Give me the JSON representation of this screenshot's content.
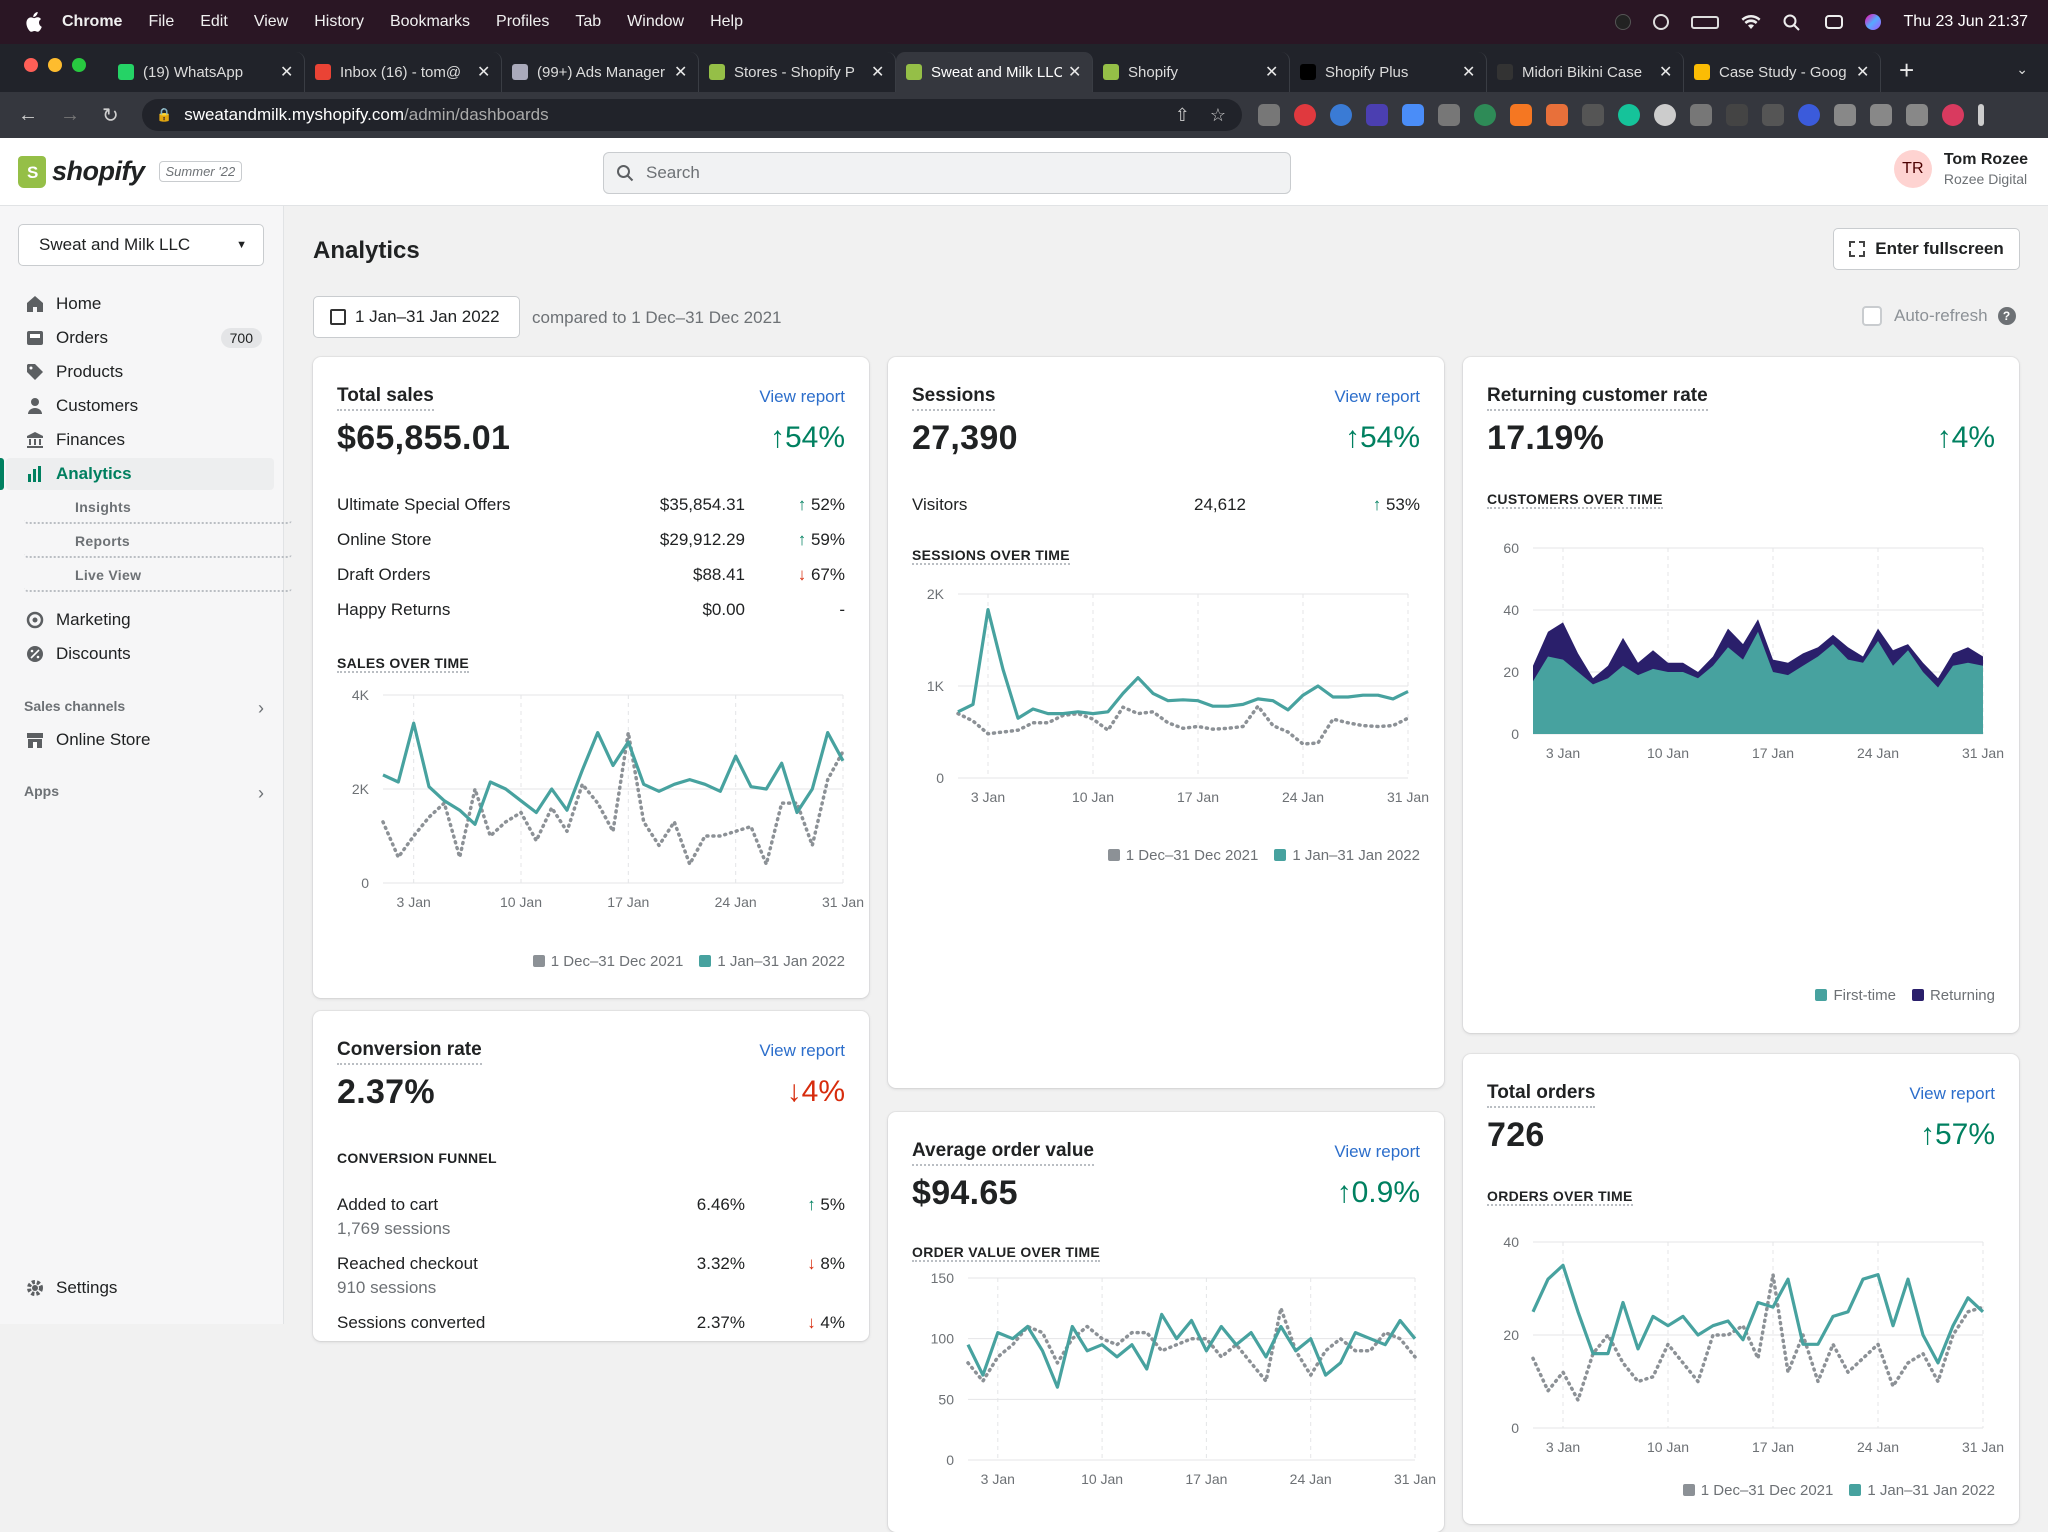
{
  "menubar": {
    "app": "Chrome",
    "items": [
      "File",
      "Edit",
      "View",
      "History",
      "Bookmarks",
      "Profiles",
      "Tab",
      "Window",
      "Help"
    ],
    "datetime": "Thu 23 Jun  21:37"
  },
  "tabs": [
    {
      "title": "(19) WhatsApp",
      "color": "#25d366"
    },
    {
      "title": "Inbox (16) - tom@",
      "color": "#ea4335"
    },
    {
      "title": "(99+) Ads Manager",
      "color": "#aab"
    },
    {
      "title": "Stores - Shopify P",
      "color": "#95bf47"
    },
    {
      "title": "Sweat and Milk LLC",
      "color": "#95bf47",
      "active": true
    },
    {
      "title": "Shopify",
      "color": "#95bf47"
    },
    {
      "title": "Shopify Plus",
      "color": "#000"
    },
    {
      "title": "Midori Bikini Case",
      "color": "#333"
    },
    {
      "title": "Case Study - Goog",
      "color": "#fbbc04"
    }
  ],
  "address": {
    "host": "sweatandmilk.myshopify.com",
    "path": "/admin/dashboards"
  },
  "shopify": {
    "logo_text": "shopify",
    "edition": "Summer '22",
    "search_placeholder": "Search",
    "user_initials": "TR",
    "user_name": "Tom Rozee",
    "user_org": "Rozee Digital"
  },
  "sidebar": {
    "store": "Sweat and Milk LLC",
    "items": [
      {
        "label": "Home",
        "icon": "home-icon"
      },
      {
        "label": "Orders",
        "icon": "orders-icon",
        "badge": "700"
      },
      {
        "label": "Products",
        "icon": "tag-icon"
      },
      {
        "label": "Customers",
        "icon": "person-icon"
      },
      {
        "label": "Finances",
        "icon": "bank-icon"
      },
      {
        "label": "Analytics",
        "icon": "bar-chart-icon",
        "active": true
      },
      {
        "label": "Insights"
      },
      {
        "label": "Reports"
      },
      {
        "label": "Live View"
      },
      {
        "label": "Marketing",
        "icon": "target-icon"
      },
      {
        "label": "Discounts",
        "icon": "discount-icon"
      }
    ],
    "sales_channels": "Sales channels",
    "online_store": "Online Store",
    "apps": "Apps",
    "settings": "Settings"
  },
  "page": {
    "title": "Analytics",
    "fullscreen": "Enter fullscreen",
    "date_range": "1 Jan–31 Jan 2022",
    "compared": "compared to 1 Dec–31 Dec 2021",
    "auto_refresh": "Auto-refresh",
    "view_report": "View report",
    "legend_prev": "1 Dec–31 Dec 2021",
    "legend_cur": "1 Jan–31 Jan 2022"
  },
  "cards": {
    "total_sales": {
      "title": "Total sales",
      "value": "$65,855.01",
      "change": "54%",
      "rows": [
        {
          "label": "Ultimate Special Offers",
          "value": "$35,854.31",
          "change": "52%",
          "dir": "up"
        },
        {
          "label": "Online Store",
          "value": "$29,912.29",
          "change": "59%",
          "dir": "up"
        },
        {
          "label": "Draft Orders",
          "value": "$88.41",
          "change": "67%",
          "dir": "down"
        },
        {
          "label": "Happy Returns",
          "value": "$0.00",
          "change": "-",
          "dir": "none"
        }
      ],
      "chart_title": "SALES OVER TIME"
    },
    "sessions": {
      "title": "Sessions",
      "value": "27,390",
      "change": "54%",
      "visitors_label": "Visitors",
      "visitors_value": "24,612",
      "visitors_change": "53%",
      "chart_title": "SESSIONS OVER TIME"
    },
    "returning": {
      "title": "Returning customer rate",
      "value": "17.19%",
      "change": "4%",
      "chart_title": "CUSTOMERS OVER TIME",
      "legend_first": "First-time",
      "legend_ret": "Returning"
    },
    "aov": {
      "title": "Average order value",
      "value": "$94.65",
      "change": "0.9%",
      "chart_title": "ORDER VALUE OVER TIME"
    },
    "orders": {
      "title": "Total orders",
      "value": "726",
      "change": "57%",
      "chart_title": "ORDERS OVER TIME"
    },
    "conversion": {
      "title": "Conversion rate",
      "value": "2.37%",
      "change": "4%",
      "funnel_title": "CONVERSION FUNNEL",
      "rows": [
        {
          "label": "Added to cart",
          "sub": "1,769 sessions",
          "value": "6.46%",
          "change": "5%",
          "dir": "up"
        },
        {
          "label": "Reached checkout",
          "sub": "910 sessions",
          "value": "3.32%",
          "change": "8%",
          "dir": "down"
        },
        {
          "label": "Sessions converted",
          "sub": "",
          "value": "2.37%",
          "change": "4%",
          "dir": "down"
        }
      ]
    }
  },
  "chart_data": [
    {
      "id": "sales",
      "type": "line",
      "ylim": [
        0,
        4000
      ],
      "yticks": [
        "0",
        "2K",
        "4K"
      ],
      "xticks": [
        "3 Jan",
        "10 Jan",
        "17 Jan",
        "24 Jan",
        "31 Jan"
      ],
      "series": [
        {
          "name": "1 Jan–31 Jan 2022",
          "values": [
            2300,
            2150,
            3400,
            2050,
            1750,
            1550,
            1250,
            2150,
            2000,
            1750,
            1500,
            2000,
            1550,
            2400,
            3200,
            2500,
            3000,
            2100,
            1950,
            2100,
            2200,
            2100,
            1950,
            2700,
            2050,
            2000,
            2550,
            1500,
            2000,
            3200,
            2600
          ]
        },
        {
          "name": "1 Dec–31 Dec 2021",
          "values": [
            1300,
            550,
            1000,
            1400,
            1700,
            550,
            2000,
            1000,
            1300,
            1500,
            900,
            1600,
            1100,
            2100,
            1700,
            1100,
            3200,
            1300,
            800,
            1300,
            400,
            1000,
            1000,
            1100,
            1200,
            400,
            1700,
            1700,
            800,
            2200,
            2800
          ]
        }
      ]
    },
    {
      "id": "sessions",
      "type": "line",
      "ylim": [
        0,
        2000
      ],
      "yticks": [
        "0",
        "1K",
        "2K"
      ],
      "xticks": [
        "3 Jan",
        "10 Jan",
        "17 Jan",
        "24 Jan",
        "31 Jan"
      ],
      "series": [
        {
          "name": "1 Jan–31 Jan 2022",
          "values": [
            720,
            800,
            1830,
            1180,
            650,
            750,
            700,
            700,
            720,
            700,
            720,
            920,
            1090,
            920,
            840,
            850,
            840,
            780,
            780,
            800,
            860,
            840,
            740,
            900,
            1000,
            880,
            880,
            900,
            900,
            860,
            940
          ]
        },
        {
          "name": "1 Dec–31 Dec 2021",
          "values": [
            700,
            620,
            480,
            500,
            520,
            600,
            600,
            680,
            700,
            640,
            520,
            770,
            700,
            720,
            600,
            540,
            560,
            530,
            540,
            560,
            780,
            570,
            500,
            370,
            380,
            640,
            600,
            570,
            560,
            570,
            650
          ]
        }
      ]
    },
    {
      "id": "customers",
      "type": "area",
      "ylim": [
        0,
        60
      ],
      "yticks": [
        "0",
        "20",
        "40",
        "60"
      ],
      "xticks": [
        "3 Jan",
        "10 Jan",
        "17 Jan",
        "24 Jan",
        "31 Jan"
      ],
      "series": [
        {
          "name": "First-time",
          "values": [
            17,
            25,
            24,
            20,
            16,
            18,
            22,
            19,
            21,
            20,
            20,
            18,
            22,
            28,
            24,
            33,
            20,
            19,
            22,
            25,
            29,
            24,
            23,
            30,
            22,
            27,
            20,
            15,
            22,
            23,
            22
          ]
        },
        {
          "name": "Returning",
          "values": [
            5,
            8,
            12,
            6,
            2,
            4,
            9,
            4,
            6,
            3,
            3,
            2,
            3,
            6,
            5,
            4,
            4,
            4,
            4,
            3,
            3,
            4,
            2,
            4,
            5,
            2,
            3,
            3,
            4,
            5,
            3
          ]
        }
      ]
    },
    {
      "id": "aov",
      "type": "line",
      "ylim": [
        0,
        150
      ],
      "yticks": [
        "0",
        "50",
        "100",
        "150"
      ],
      "xticks": [
        "3 Jan",
        "10 Jan",
        "17 Jan",
        "24 Jan",
        "31 Jan"
      ],
      "series": [
        {
          "name": "1 Jan–31 Jan 2022",
          "values": [
            95,
            70,
            105,
            100,
            110,
            90,
            60,
            110,
            90,
            95,
            85,
            95,
            75,
            120,
            100,
            115,
            90,
            110,
            95,
            105,
            85,
            110,
            90,
            100,
            70,
            80,
            105,
            100,
            95,
            115,
            100
          ]
        },
        {
          "name": "1 Dec–31 Dec 2021",
          "values": [
            80,
            65,
            85,
            95,
            110,
            105,
            80,
            100,
            110,
            100,
            95,
            105,
            105,
            90,
            95,
            100,
            100,
            85,
            95,
            80,
            65,
            125,
            90,
            70,
            90,
            100,
            90,
            90,
            105,
            100,
            85
          ]
        }
      ]
    },
    {
      "id": "orders",
      "type": "line",
      "ylim": [
        0,
        40
      ],
      "yticks": [
        "0",
        "20",
        "40"
      ],
      "xticks": [
        "3 Jan",
        "10 Jan",
        "17 Jan",
        "24 Jan",
        "31 Jan"
      ],
      "series": [
        {
          "name": "1 Jan–31 Jan 2022",
          "values": [
            25,
            32,
            35,
            25,
            16,
            16,
            27,
            17,
            24,
            22,
            24,
            20,
            22,
            23,
            19,
            27,
            26,
            32,
            18,
            18,
            24,
            25,
            32,
            33,
            22,
            32,
            20,
            14,
            22,
            28,
            25
          ]
        },
        {
          "name": "1 Dec–31 Dec 2021",
          "values": [
            15,
            8,
            12,
            6,
            16,
            20,
            14,
            10,
            11,
            18,
            14,
            10,
            20,
            20,
            22,
            15,
            33,
            12,
            20,
            10,
            18,
            12,
            15,
            18,
            9,
            14,
            16,
            10,
            20,
            25,
            26
          ]
        }
      ]
    }
  ]
}
